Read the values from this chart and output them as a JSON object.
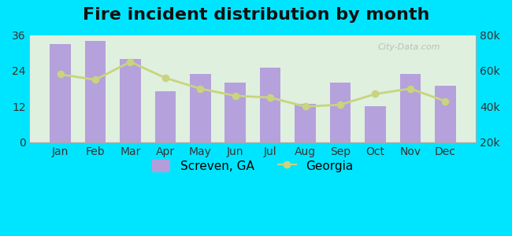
{
  "title": "Fire incident distribution by month",
  "months": [
    "Jan",
    "Feb",
    "Mar",
    "Apr",
    "May",
    "Jun",
    "Jul",
    "Aug",
    "Sep",
    "Oct",
    "Nov",
    "Dec"
  ],
  "screven_values": [
    33,
    34,
    28,
    17,
    23,
    20,
    25,
    13,
    20,
    12,
    23,
    19
  ],
  "georgia_values": [
    58000,
    55000,
    65000,
    56000,
    50000,
    46000,
    45000,
    40000,
    41000,
    47000,
    50000,
    43000
  ],
  "bar_color": "#b39ddb",
  "line_color": "#c8d47e",
  "line_marker_color": "#c8d47e",
  "background_color": "#00e5ff",
  "plot_bg_top": "#f0f8f0",
  "plot_bg_bottom": "#e0f5e0",
  "ylim_left": [
    0,
    36
  ],
  "ylim_right": [
    20000,
    80000
  ],
  "yticks_left": [
    0,
    12,
    24,
    36
  ],
  "yticks_right": [
    20000,
    40000,
    60000,
    80000
  ],
  "legend_screven": "Screven, GA",
  "legend_georgia": "Georgia",
  "watermark": "City-Data.com",
  "title_fontsize": 16,
  "tick_fontsize": 10,
  "legend_fontsize": 11
}
